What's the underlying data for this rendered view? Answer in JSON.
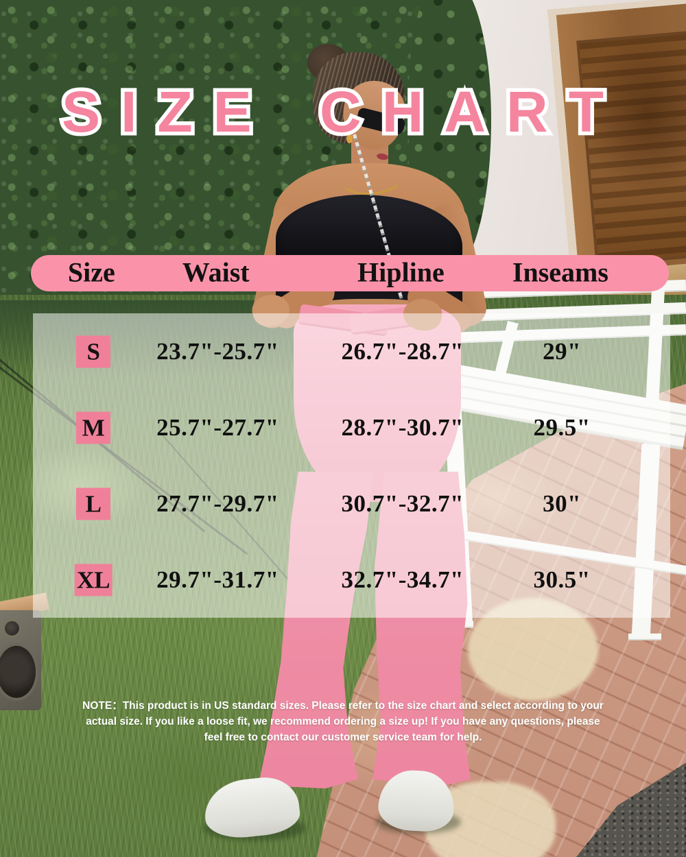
{
  "title": "SIZE CHART",
  "table": {
    "headers": [
      "Size",
      "Waist",
      "Hipline",
      "Inseams"
    ],
    "rows": [
      {
        "size": "S",
        "waist": "23.7\"-25.7\"",
        "hipline": "26.7\"-28.7\"",
        "inseams": "29\""
      },
      {
        "size": "M",
        "waist": "25.7\"-27.7\"",
        "hipline": "28.7\"-30.7\"",
        "inseams": "29.5\""
      },
      {
        "size": "L",
        "waist": "27.7\"-29.7\"",
        "hipline": "30.7\"-32.7\"",
        "inseams": "30\""
      },
      {
        "size": "XL",
        "waist": "29.7\"-31.7\"",
        "hipline": "32.7\"-34.7\"",
        "inseams": "30.5\""
      }
    ]
  },
  "note": {
    "line1": "NOTE：This product is in US standard sizes. Please refer to the size chart and select according to your",
    "line2": "actual size. If you like a loose fit, we  recommend ordering a size up! If you have any questions, please",
    "line3": "feel free to contact our customer service team for help."
  },
  "colors": {
    "header_bar_pink": "#FA93A9",
    "badge_pink": "#F0809A",
    "title_pink": "#F5849E",
    "table_text": "#101010",
    "note_text": "#FFFFFF",
    "body_overlay": "rgba(255,255,255,0.52)"
  },
  "chart_data": {
    "type": "table",
    "title": "SIZE CHART",
    "columns": [
      "Size",
      "Waist",
      "Hipline",
      "Inseams"
    ],
    "rows": [
      [
        "S",
        "23.7\"-25.7\"",
        "26.7\"-28.7\"",
        "29\""
      ],
      [
        "M",
        "25.7\"-27.7\"",
        "28.7\"-30.7\"",
        "29.5\""
      ],
      [
        "L",
        "27.7\"-29.7\"",
        "30.7\"-32.7\"",
        "30\""
      ],
      [
        "XL",
        "29.7\"-31.7\"",
        "32.7\"-34.7\"",
        "30.5\""
      ]
    ]
  }
}
